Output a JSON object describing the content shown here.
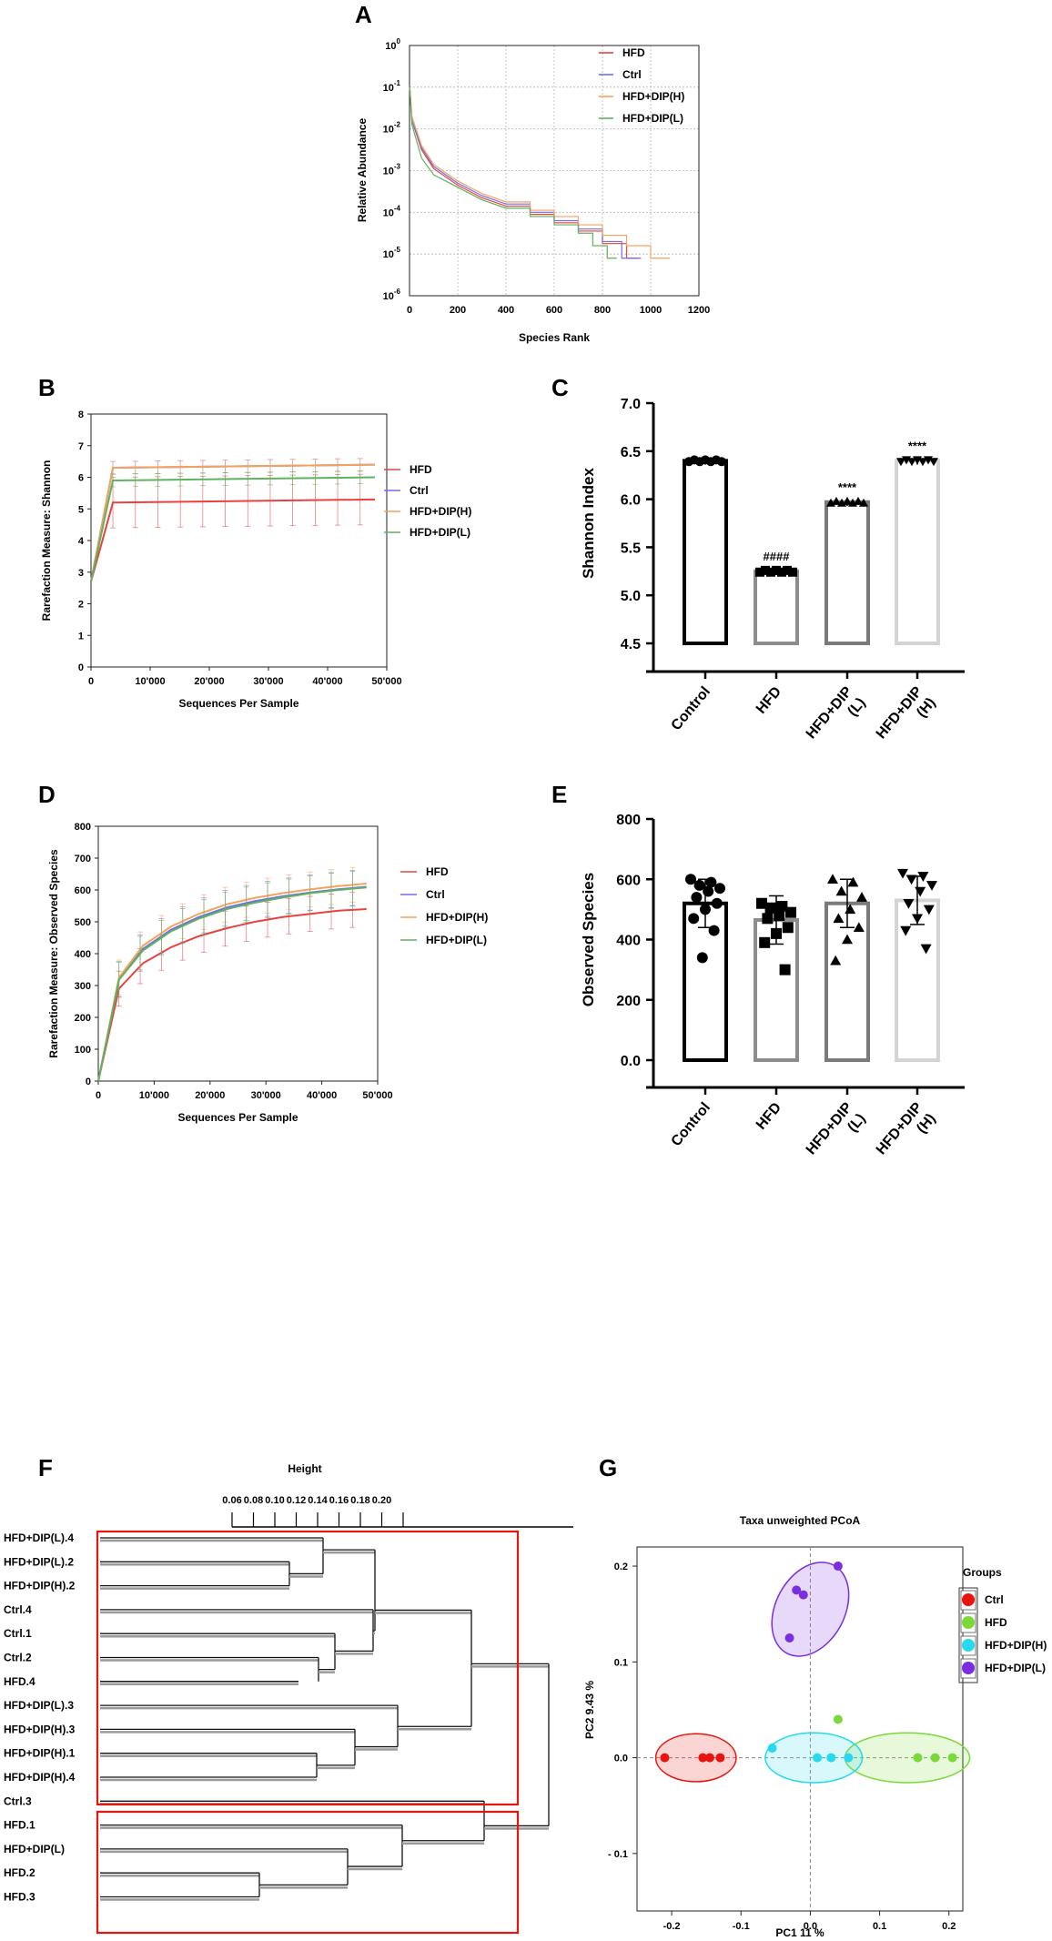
{
  "panels": {
    "A": "A",
    "B": "B",
    "C": "C",
    "D": "D",
    "E": "E",
    "F": "F",
    "G": "G"
  },
  "colors": {
    "HFD": "#e8423f",
    "Ctrl": "#6f6fe8",
    "HFD_DIP_H": "#f5a25e",
    "HFD_DIP_L": "#5fb25f",
    "pcoa_Ctrl": "#e8150f",
    "pcoa_HFD": "#7bd83a",
    "pcoa_H": "#26d9ee",
    "pcoa_L": "#7a2ee0",
    "bar_Control": "#000000",
    "bar_HFD": "#8c8c8c",
    "bar_L": "#7a7a7a",
    "bar_H": "#d4d4d4"
  },
  "chart_data": [
    {
      "id": "A",
      "type": "line",
      "title": "",
      "xlabel": "Species Rank",
      "ylabel": "Relative Abundance",
      "xlim": [
        0,
        1200
      ],
      "xticks": [
        "0",
        "200",
        "400",
        "600",
        "800",
        "1000",
        "1200"
      ],
      "ylog_exponents": [
        0,
        -1,
        -2,
        -3,
        -4,
        -5,
        -6
      ],
      "legend": [
        "HFD",
        "Ctrl",
        "HFD+DIP(H)",
        "HFD+DIP(L)"
      ],
      "series": [
        {
          "name": "HFD",
          "x": [
            1,
            10,
            50,
            100,
            200,
            300,
            400,
            500,
            600,
            700,
            800,
            900,
            950
          ],
          "logy": [
            -1.0,
            -1.8,
            -2.5,
            -2.95,
            -3.35,
            -3.65,
            -3.85,
            -4.05,
            -4.25,
            -4.45,
            -4.75,
            -5.1,
            -5.1
          ]
        },
        {
          "name": "Ctrl",
          "x": [
            1,
            10,
            50,
            100,
            200,
            300,
            400,
            500,
            600,
            700,
            800,
            880,
            960
          ],
          "logy": [
            -1.0,
            -1.8,
            -2.45,
            -2.9,
            -3.3,
            -3.6,
            -3.8,
            -4.0,
            -4.2,
            -4.4,
            -4.7,
            -5.1,
            -5.1
          ]
        },
        {
          "name": "HFD+DIP(H)",
          "x": [
            1,
            10,
            50,
            100,
            200,
            300,
            400,
            500,
            600,
            700,
            800,
            900,
            1000,
            1080
          ],
          "logy": [
            -1.0,
            -1.7,
            -2.4,
            -2.85,
            -3.25,
            -3.55,
            -3.75,
            -3.95,
            -4.1,
            -4.3,
            -4.55,
            -4.8,
            -5.1,
            -5.1
          ]
        },
        {
          "name": "HFD+DIP(L)",
          "x": [
            1,
            10,
            50,
            100,
            200,
            300,
            400,
            500,
            600,
            700,
            760,
            820,
            860
          ],
          "logy": [
            -1.0,
            -1.9,
            -2.7,
            -3.1,
            -3.4,
            -3.7,
            -3.9,
            -4.1,
            -4.3,
            -4.5,
            -4.8,
            -5.1,
            -5.1
          ]
        }
      ]
    },
    {
      "id": "B",
      "type": "line",
      "title": "",
      "xlabel": "Sequences Per Sample",
      "ylabel": "Rarefaction Measure: Shannon",
      "xlim": [
        0,
        50000
      ],
      "ylim": [
        0,
        8
      ],
      "xticks": [
        "0",
        "10'000",
        "20'000",
        "30'000",
        "40'000",
        "50'000"
      ],
      "yticks": [
        "0",
        "1",
        "2",
        "3",
        "4",
        "5",
        "6",
        "7",
        "8"
      ],
      "legend": [
        "HFD",
        "Ctrl",
        "HFD+DIP(H)",
        "HFD+DIP(L)"
      ],
      "series": [
        {
          "name": "HFD",
          "x": [
            0,
            3700,
            48000
          ],
          "y": [
            2.7,
            5.2,
            5.3
          ],
          "err": 0.8
        },
        {
          "name": "Ctrl",
          "x": [
            0,
            3700,
            48000
          ],
          "y": [
            2.7,
            6.3,
            6.4
          ],
          "err": 0.2
        },
        {
          "name": "HFD+DIP(H)",
          "x": [
            0,
            3700,
            48000
          ],
          "y": [
            2.7,
            6.3,
            6.4
          ],
          "err": 0.2
        },
        {
          "name": "HFD+DIP(L)",
          "x": [
            0,
            3700,
            48000
          ],
          "y": [
            2.7,
            5.9,
            6.0
          ],
          "err": 0.2
        }
      ]
    },
    {
      "id": "C",
      "type": "bar",
      "title": "",
      "categories": [
        "Control",
        "HFD",
        "HFD+DIP\n(L)",
        "HFD+DIP\n(H)"
      ],
      "values": [
        6.4,
        5.25,
        5.97,
        6.4
      ],
      "ylabel": "Shannon Index",
      "ylim": [
        4.5,
        7.0
      ],
      "yticks": [
        "4.5",
        "5.0",
        "5.5",
        "6.0",
        "6.5",
        "7.0"
      ],
      "annotations": [
        "",
        "####",
        "****",
        "****"
      ]
    },
    {
      "id": "D",
      "type": "line",
      "title": "",
      "xlabel": "Sequences Per Sample",
      "ylabel": "Rarefaction Measure: Observed Species",
      "xlim": [
        0,
        50000
      ],
      "ylim": [
        0,
        800
      ],
      "xticks": [
        "0",
        "10'000",
        "20'000",
        "30'000",
        "40'000",
        "50'000"
      ],
      "yticks": [
        "0",
        "100",
        "200",
        "300",
        "400",
        "500",
        "600",
        "700",
        "800"
      ],
      "legend": [
        "HFD",
        "Ctrl",
        "HFD+DIP(H)",
        "HFD+DIP(L)"
      ],
      "series": [
        {
          "name": "HFD",
          "x": [
            0,
            3700,
            8000,
            13000,
            18000,
            23000,
            28000,
            33000,
            38000,
            43000,
            48000
          ],
          "y": [
            0,
            290,
            370,
            420,
            455,
            480,
            500,
            515,
            525,
            535,
            540
          ],
          "err": 55
        },
        {
          "name": "Ctrl",
          "x": [
            0,
            3700,
            8000,
            13000,
            18000,
            23000,
            28000,
            33000,
            38000,
            43000,
            48000
          ],
          "y": [
            0,
            320,
            415,
            475,
            515,
            545,
            565,
            580,
            592,
            602,
            610
          ],
          "err": 55
        },
        {
          "name": "HFD+DIP(H)",
          "x": [
            0,
            3700,
            8000,
            13000,
            18000,
            23000,
            28000,
            33000,
            38000,
            43000,
            48000
          ],
          "y": [
            0,
            325,
            425,
            485,
            525,
            555,
            575,
            590,
            602,
            612,
            620
          ],
          "err": 55
        },
        {
          "name": "HFD+DIP(L)",
          "x": [
            0,
            3700,
            8000,
            13000,
            18000,
            23000,
            28000,
            33000,
            38000,
            43000,
            48000
          ],
          "y": [
            0,
            318,
            410,
            470,
            510,
            540,
            560,
            576,
            590,
            600,
            608
          ],
          "err": 55
        }
      ]
    },
    {
      "id": "E",
      "type": "bar",
      "title": "",
      "categories": [
        "Control",
        "HFD",
        "HFD+DIP\n(L)",
        "HFD+DIP\n(H)"
      ],
      "values": [
        520,
        465,
        520,
        530
      ],
      "ylabel": "Observed Species",
      "ylim": [
        0,
        800
      ],
      "yticks": [
        "0.0",
        "200",
        "400",
        "600",
        "800"
      ]
    },
    {
      "id": "F",
      "type": "dendrogram",
      "title": "Height",
      "xticks": [
        "0.06",
        "0.08",
        "0.10",
        "0.12",
        "0.14",
        "0.16",
        "0.18",
        "0.20"
      ],
      "leaves": [
        "HFD+DIP(L).4",
        "HFD+DIP(L).2",
        "HFD+DIP(H).2",
        "Ctrl.4",
        "Ctrl.1",
        "Ctrl.2",
        "HFD.4",
        "HFD+DIP(L).3",
        "HFD+DIP(H).3",
        "HFD+DIP(H).1",
        "HFD+DIP(H).4",
        "Ctrl.3",
        "HFD.1",
        "HFD+DIP(L)",
        "HFD.2",
        "HFD.3"
      ]
    },
    {
      "id": "G",
      "type": "scatter",
      "title": "Taxa unweighted PCoA",
      "xlabel": "PC1  11 %",
      "ylabel": "PC2  9.43 %",
      "xlim": [
        -0.25,
        0.22
      ],
      "ylim": [
        -0.16,
        0.22
      ],
      "xticks": [
        "-0.2",
        "-0.1",
        "0.0",
        "0.1",
        "0.2"
      ],
      "yticks": [
        "0.2",
        "0.1",
        "0.0",
        "- 0.1"
      ],
      "legend_title": "Groups",
      "legend": [
        "Ctrl",
        "HFD",
        "HFD+DIP(H)",
        "HFD+DIP(L)"
      ],
      "series": [
        {
          "name": "Ctrl",
          "x": [
            -0.21,
            -0.155,
            -0.145,
            -0.13
          ],
          "y": [
            0.0,
            0.0,
            0.0,
            0.0
          ]
        },
        {
          "name": "HFD",
          "x": [
            0.04,
            0.155,
            0.18,
            0.205
          ],
          "y": [
            0.04,
            0.0,
            0.0,
            0.0
          ]
        },
        {
          "name": "HFD+DIP(H)",
          "x": [
            -0.055,
            0.01,
            0.03,
            0.055
          ],
          "y": [
            0.01,
            0.0,
            0.0,
            0.0
          ]
        },
        {
          "name": "HFD+DIP(L)",
          "x": [
            -0.03,
            -0.02,
            -0.01,
            0.04
          ],
          "y": [
            0.125,
            0.175,
            0.17,
            0.2
          ]
        }
      ]
    }
  ]
}
